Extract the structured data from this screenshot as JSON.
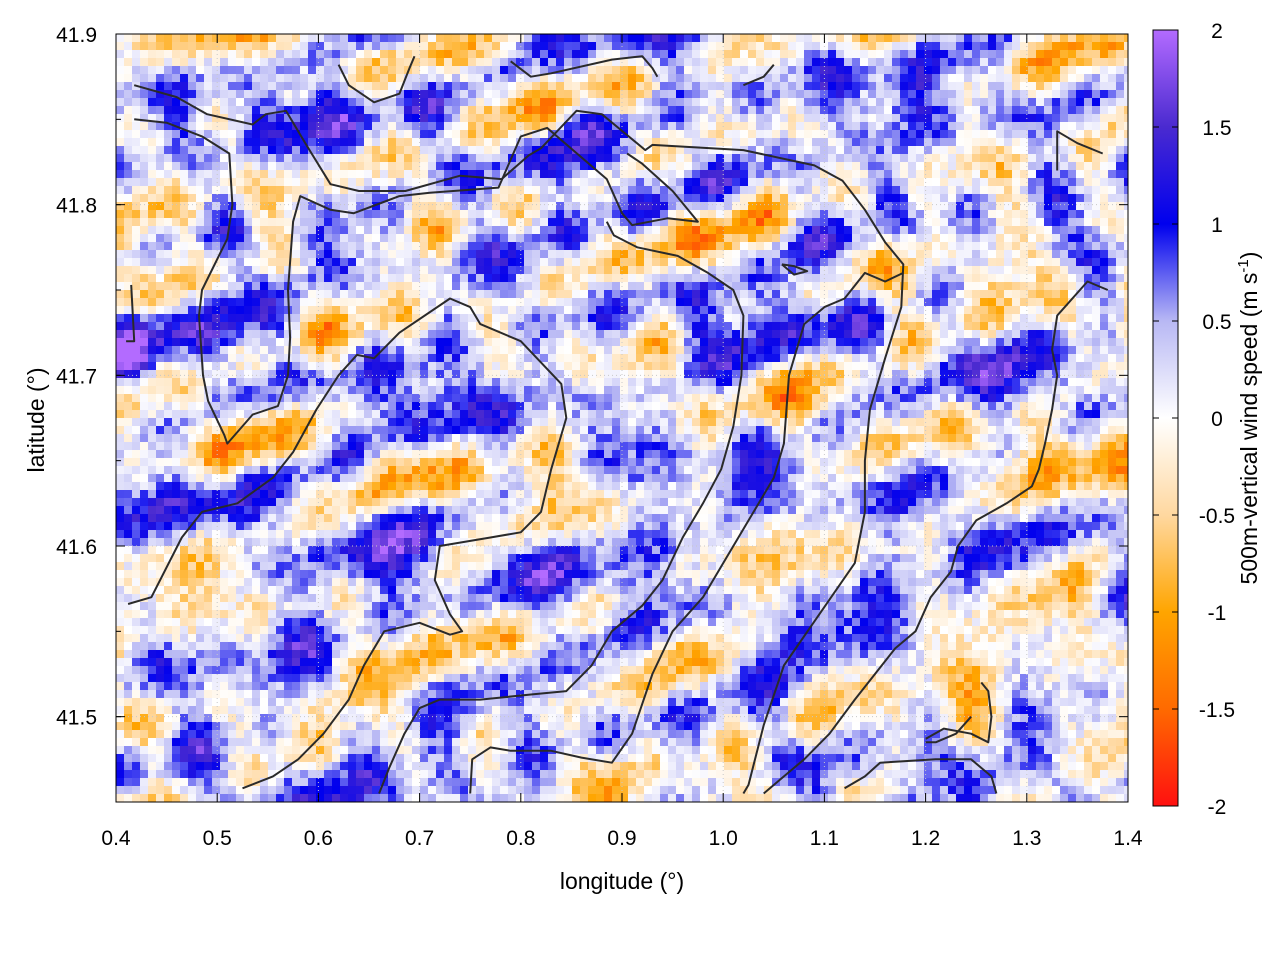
{
  "chart_data": {
    "type": "heatmap",
    "title": "",
    "xlabel": "longitude (°)",
    "ylabel": "latitude (°)",
    "xlim": [
      0.4,
      1.4
    ],
    "ylim": [
      41.45,
      41.9
    ],
    "x_ticks": [
      "0.4",
      "0.5",
      "0.6",
      "0.7",
      "0.8",
      "0.9",
      "1.0",
      "1.1",
      "1.2",
      "1.3",
      "1.4"
    ],
    "y_ticks": [
      "41.5",
      "41.6",
      "41.7",
      "41.8",
      "41.9"
    ],
    "grid": true,
    "colorbar": {
      "label_main": "500m-vertical wind speed (m s",
      "label_sup": "-1",
      "label_end": ")",
      "range": [
        -2,
        2
      ],
      "ticks": [
        "-2",
        "-1.5",
        "-1",
        "-0.5",
        "0",
        "0.5",
        "1",
        "1.5",
        "2"
      ],
      "colors": [
        {
          "value": -2,
          "color": "#ff1010"
        },
        {
          "value": -1.5,
          "color": "#ff6a00"
        },
        {
          "value": -1,
          "color": "#ffa500"
        },
        {
          "value": -0.5,
          "color": "#ffd8a0"
        },
        {
          "value": 0,
          "color": "#ffffff"
        },
        {
          "value": 0.5,
          "color": "#b8b8f4"
        },
        {
          "value": 1,
          "color": "#0000ee"
        },
        {
          "value": 1.5,
          "color": "#4a2ad0"
        },
        {
          "value": 2,
          "color": "#b36bff"
        }
      ]
    },
    "contours": [
      [
        [
          0.418,
          41.87
        ],
        [
          0.46,
          41.863
        ],
        [
          0.49,
          41.853
        ],
        [
          0.535,
          41.847
        ],
        [
          0.548,
          41.853
        ],
        [
          0.568,
          41.855
        ],
        [
          0.588,
          41.835
        ],
        [
          0.612,
          41.812
        ],
        [
          0.64,
          41.808
        ],
        [
          0.686,
          41.808
        ],
        [
          0.74,
          41.817
        ],
        [
          0.781,
          41.815
        ],
        [
          0.808,
          41.829
        ],
        [
          0.82,
          41.833
        ],
        [
          0.855,
          41.855
        ],
        [
          0.88,
          41.853
        ],
        [
          0.923,
          41.832
        ],
        [
          0.93,
          41.835
        ],
        [
          1.02,
          41.832
        ],
        [
          1.09,
          41.823
        ],
        [
          1.118,
          41.814
        ],
        [
          1.14,
          41.797
        ],
        [
          1.16,
          41.778
        ],
        [
          1.178,
          41.765
        ],
        [
          1.176,
          41.74
        ],
        [
          1.16,
          41.71
        ],
        [
          1.145,
          41.68
        ],
        [
          1.14,
          41.65
        ],
        [
          1.14,
          41.62
        ],
        [
          1.13,
          41.59
        ],
        [
          1.095,
          41.56
        ],
        [
          1.06,
          41.53
        ],
        [
          1.04,
          41.495
        ],
        [
          1.025,
          41.46
        ],
        [
          1.02,
          41.455
        ]
      ],
      [
        [
          0.418,
          41.85
        ],
        [
          0.45,
          41.848
        ],
        [
          0.485,
          41.84
        ],
        [
          0.512,
          41.83
        ],
        [
          0.515,
          41.8
        ],
        [
          0.51,
          41.78
        ],
        [
          0.485,
          41.75
        ],
        [
          0.482,
          41.735
        ],
        [
          0.486,
          41.7
        ],
        [
          0.491,
          41.685
        ],
        [
          0.507,
          41.665
        ],
        [
          0.51,
          41.66
        ],
        [
          0.535,
          41.677
        ],
        [
          0.56,
          41.682
        ],
        [
          0.57,
          41.7
        ],
        [
          0.572,
          41.722
        ],
        [
          0.57,
          41.75
        ],
        [
          0.575,
          41.79
        ],
        [
          0.582,
          41.805
        ],
        [
          0.612,
          41.797
        ],
        [
          0.635,
          41.795
        ],
        [
          0.68,
          41.805
        ],
        [
          0.71,
          41.807
        ],
        [
          0.778,
          41.81
        ],
        [
          0.8,
          41.84
        ],
        [
          0.826,
          41.845
        ],
        [
          0.885,
          41.815
        ],
        [
          0.9,
          41.795
        ],
        [
          0.91,
          41.788
        ],
        [
          0.945,
          41.792
        ],
        [
          0.975,
          41.79
        ],
        [
          0.95,
          41.808
        ],
        [
          0.92,
          41.824
        ],
        [
          0.905,
          41.83
        ]
      ],
      [
        [
          0.412,
          41.566
        ],
        [
          0.435,
          41.57
        ],
        [
          0.465,
          41.605
        ],
        [
          0.485,
          41.62
        ],
        [
          0.52,
          41.625
        ],
        [
          0.555,
          41.64
        ],
        [
          0.575,
          41.655
        ],
        [
          0.598,
          41.68
        ],
        [
          0.62,
          41.7
        ],
        [
          0.638,
          41.712
        ],
        [
          0.655,
          41.71
        ],
        [
          0.68,
          41.725
        ],
        [
          0.73,
          41.745
        ],
        [
          0.75,
          41.74
        ],
        [
          0.76,
          41.73
        ],
        [
          0.8,
          41.72
        ],
        [
          0.84,
          41.695
        ],
        [
          0.845,
          41.675
        ],
        [
          0.83,
          41.645
        ],
        [
          0.82,
          41.62
        ],
        [
          0.8,
          41.608
        ],
        [
          0.77,
          41.605
        ],
        [
          0.72,
          41.6
        ],
        [
          0.715,
          41.58
        ],
        [
          0.73,
          41.56
        ],
        [
          0.742,
          41.55
        ],
        [
          0.73,
          41.548
        ],
        [
          0.7,
          41.555
        ],
        [
          0.665,
          41.55
        ],
        [
          0.645,
          41.53
        ],
        [
          0.63,
          41.51
        ],
        [
          0.605,
          41.49
        ],
        [
          0.58,
          41.475
        ],
        [
          0.555,
          41.465
        ],
        [
          0.525,
          41.458
        ]
      ],
      [
        [
          0.66,
          41.455
        ],
        [
          0.67,
          41.47
        ],
        [
          0.685,
          41.49
        ],
        [
          0.7,
          41.505
        ],
        [
          0.72,
          41.51
        ],
        [
          0.76,
          41.51
        ],
        [
          0.81,
          41.513
        ],
        [
          0.845,
          41.515
        ],
        [
          0.87,
          41.53
        ],
        [
          0.89,
          41.55
        ],
        [
          0.92,
          41.565
        ],
        [
          0.94,
          41.58
        ],
        [
          0.96,
          41.605
        ],
        [
          0.98,
          41.625
        ],
        [
          0.998,
          41.645
        ],
        [
          1.01,
          41.67
        ],
        [
          1.018,
          41.7
        ],
        [
          1.02,
          41.735
        ],
        [
          1.01,
          41.75
        ],
        [
          0.985,
          41.76
        ],
        [
          0.955,
          41.77
        ],
        [
          0.915,
          41.775
        ],
        [
          0.892,
          41.782
        ],
        [
          0.885,
          41.79
        ]
      ],
      [
        [
          0.75,
          41.455
        ],
        [
          0.752,
          41.475
        ],
        [
          0.77,
          41.482
        ],
        [
          0.79,
          41.48
        ],
        [
          0.83,
          41.48
        ],
        [
          0.86,
          41.476
        ],
        [
          0.89,
          41.473
        ],
        [
          0.91,
          41.49
        ],
        [
          0.93,
          41.525
        ],
        [
          0.95,
          41.55
        ],
        [
          0.98,
          41.57
        ],
        [
          1.0,
          41.59
        ],
        [
          1.03,
          41.62
        ],
        [
          1.05,
          41.64
        ],
        [
          1.06,
          41.66
        ],
        [
          1.065,
          41.7
        ],
        [
          1.08,
          41.73
        ],
        [
          1.1,
          41.74
        ],
        [
          1.12,
          41.745
        ],
        [
          1.14,
          41.76
        ],
        [
          1.16,
          41.755
        ],
        [
          1.178,
          41.76
        ]
      ],
      [
        [
          1.058,
          41.765
        ],
        [
          1.07,
          41.764
        ],
        [
          1.083,
          41.761
        ],
        [
          1.07,
          41.759
        ],
        [
          1.058,
          41.765
        ]
      ],
      [
        [
          1.245,
          41.5
        ],
        [
          1.23,
          41.49
        ],
        [
          1.21,
          41.485
        ],
        [
          1.2,
          41.485
        ]
      ],
      [
        [
          1.2,
          41.487
        ],
        [
          1.218,
          41.493
        ],
        [
          1.245,
          41.49
        ],
        [
          1.262,
          41.485
        ],
        [
          1.265,
          41.5
        ],
        [
          1.262,
          41.515
        ],
        [
          1.255,
          41.52
        ]
      ],
      [
        [
          1.27,
          41.455
        ],
        [
          1.265,
          41.465
        ],
        [
          1.245,
          41.475
        ],
        [
          1.21,
          41.475
        ],
        [
          1.155,
          41.473
        ],
        [
          1.14,
          41.465
        ],
        [
          1.12,
          41.458
        ]
      ],
      [
        [
          1.33,
          41.82
        ],
        [
          1.33,
          41.843
        ],
        [
          1.35,
          41.836
        ],
        [
          1.375,
          41.83
        ]
      ],
      [
        [
          1.38,
          41.75
        ],
        [
          1.36,
          41.755
        ],
        [
          1.33,
          41.735
        ],
        [
          1.325,
          41.715
        ],
        [
          1.33,
          41.7
        ],
        [
          1.325,
          41.68
        ],
        [
          1.318,
          41.66
        ],
        [
          1.312,
          41.645
        ],
        [
          1.305,
          41.635
        ],
        [
          1.28,
          41.625
        ],
        [
          1.25,
          41.615
        ],
        [
          1.232,
          41.6
        ],
        [
          1.225,
          41.585
        ],
        [
          1.205,
          41.57
        ],
        [
          1.19,
          41.55
        ],
        [
          1.17,
          41.54
        ],
        [
          1.15,
          41.525
        ],
        [
          1.13,
          41.51
        ],
        [
          1.105,
          41.49
        ],
        [
          1.08,
          41.475
        ],
        [
          1.06,
          41.465
        ],
        [
          1.04,
          41.455
        ]
      ],
      [
        [
          0.415,
          41.753
        ],
        [
          0.418,
          41.72
        ],
        [
          0.41,
          41.72
        ]
      ],
      [
        [
          0.62,
          41.882
        ],
        [
          0.63,
          41.87
        ],
        [
          0.655,
          41.86
        ],
        [
          0.68,
          41.865
        ],
        [
          0.69,
          41.88
        ],
        [
          0.695,
          41.887
        ]
      ],
      [
        [
          0.79,
          41.884
        ],
        [
          0.81,
          41.875
        ],
        [
          0.83,
          41.877
        ],
        [
          0.89,
          41.885
        ],
        [
          0.92,
          41.887
        ],
        [
          0.93,
          41.88
        ],
        [
          0.935,
          41.875
        ]
      ],
      [
        [
          1.02,
          41.87
        ],
        [
          1.04,
          41.875
        ],
        [
          1.05,
          41.882
        ]
      ]
    ]
  }
}
